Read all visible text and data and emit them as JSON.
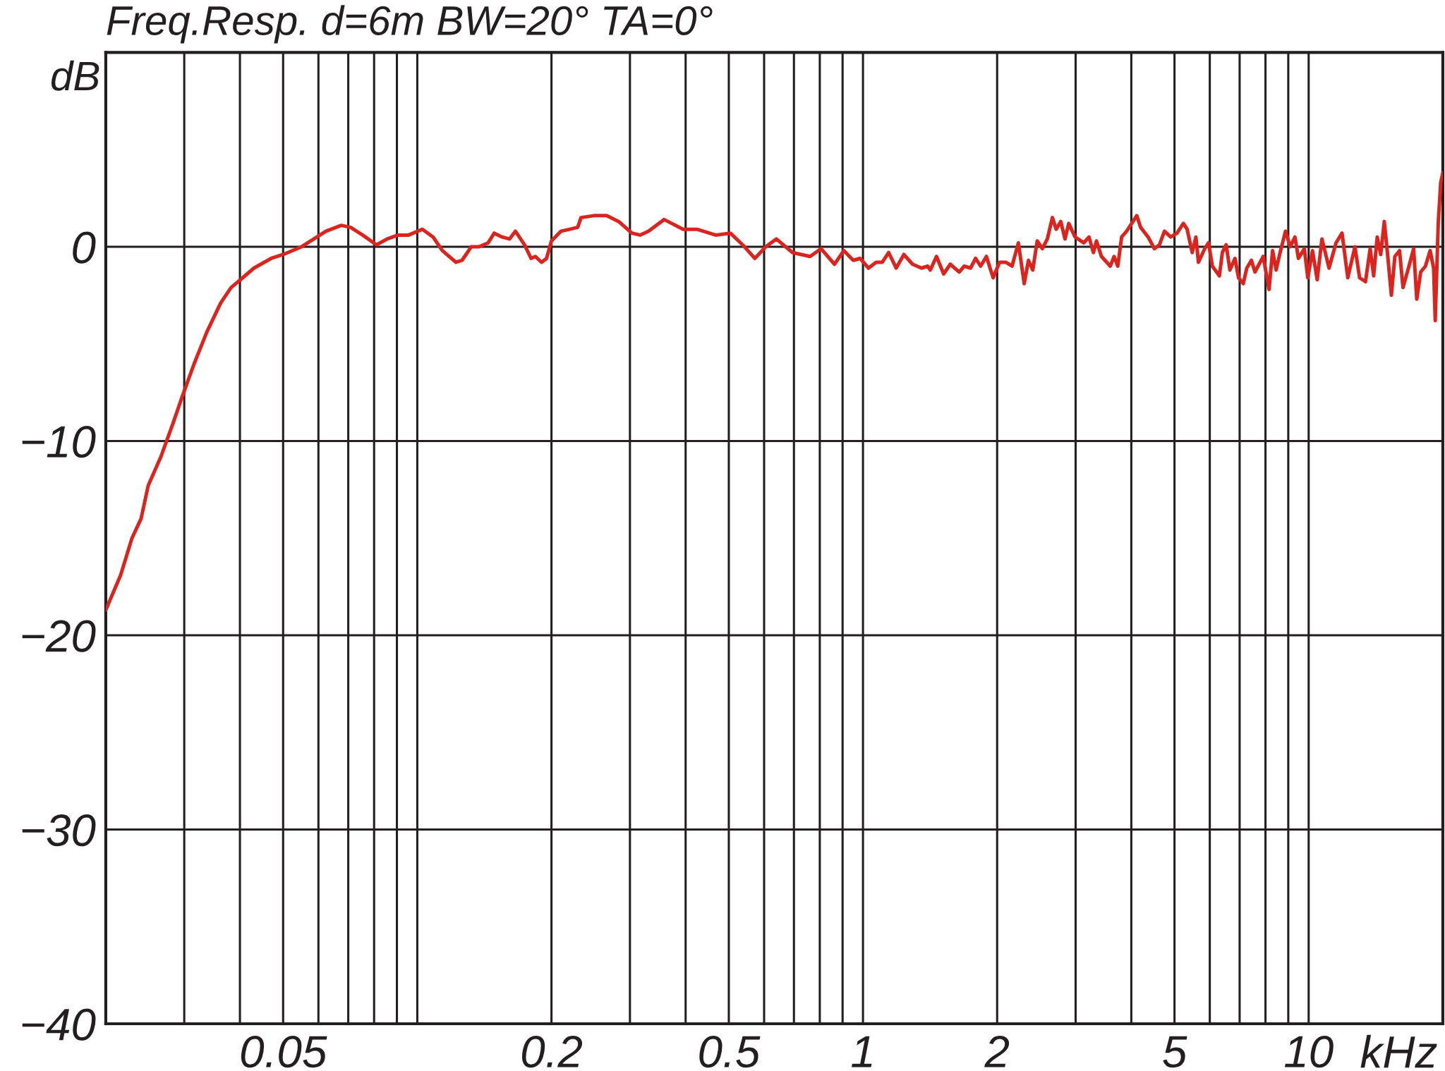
{
  "chart_data": {
    "type": "line",
    "title": "Freq.Resp. d=6m BW=20° TA=0°",
    "xlabel": "kHz",
    "ylabel": "dB",
    "log": "x",
    "grid": true,
    "xlim": [
      0.02,
      20
    ],
    "xticks": [
      {
        "value": 0.03,
        "label": null
      },
      {
        "value": 0.04,
        "label": null
      },
      0.05,
      {
        "value": 0.06,
        "label": null
      },
      {
        "value": 0.07,
        "label": null
      },
      {
        "value": 0.08,
        "label": null
      },
      {
        "value": 0.09,
        "label": null
      },
      {
        "value": 0.1,
        "label": null
      },
      0.2,
      {
        "value": 0.3,
        "label": null
      },
      {
        "value": 0.4,
        "label": null
      },
      0.5,
      {
        "value": 0.6,
        "label": null
      },
      {
        "value": 0.7,
        "label": null
      },
      {
        "value": 0.8,
        "label": null
      },
      {
        "value": 0.9,
        "label": null
      },
      1,
      2,
      {
        "value": 3,
        "label": null
      },
      {
        "value": 4,
        "label": null
      },
      5,
      {
        "value": 6,
        "label": null
      },
      {
        "value": 7,
        "label": null
      },
      {
        "value": 8,
        "label": null
      },
      {
        "value": 9,
        "label": null
      },
      10
    ],
    "ylim": [
      -40,
      10
    ],
    "yticks": [
      -40,
      -30,
      -20,
      -10,
      0
    ],
    "x": [
      0.02,
      0.0216,
      0.0229,
      0.024,
      0.0249,
      0.0266,
      0.0283,
      0.0297,
      0.0316,
      0.0337,
      0.0362,
      0.0382,
      0.0401,
      0.043,
      0.047,
      0.05,
      0.055,
      0.0586,
      0.0624,
      0.0675,
      0.0708,
      0.0754,
      0.081,
      0.0856,
      0.0905,
      0.0956,
      0.1027,
      0.1085,
      0.1138,
      0.1221,
      0.126,
      0.1322,
      0.1375,
      0.1442,
      0.1488,
      0.155,
      0.161,
      0.166,
      0.174,
      0.18,
      0.184,
      0.19,
      0.195,
      0.2,
      0.21,
      0.22,
      0.229,
      0.233,
      0.249,
      0.266,
      0.283,
      0.303,
      0.316,
      0.33,
      0.358,
      0.395,
      0.424,
      0.467,
      0.504,
      0.537,
      0.572,
      0.605,
      0.639,
      0.695,
      0.761,
      0.805,
      0.863,
      0.906,
      0.951,
      0.985,
      1.029,
      1.07,
      1.105,
      1.142,
      1.187,
      1.235,
      1.292,
      1.353,
      1.397,
      1.416,
      1.462,
      1.517,
      1.57,
      1.644,
      1.687,
      1.743,
      1.789,
      1.836,
      1.892,
      1.959,
      2.025,
      2.091,
      2.16,
      2.232,
      2.3,
      2.351,
      2.404,
      2.46,
      2.526,
      2.592,
      2.661,
      2.713,
      2.778,
      2.84,
      2.895,
      2.991,
      3.13,
      3.214,
      3.289,
      3.341,
      3.428,
      3.588,
      3.659,
      3.73,
      3.805,
      3.904,
      4.035,
      4.114,
      4.196,
      4.363,
      4.507,
      4.626,
      4.747,
      4.903,
      5.066,
      5.234,
      5.337,
      5.479,
      5.585,
      5.658,
      5.845,
      5.961,
      6.08,
      6.305,
      6.402,
      6.529,
      6.658,
      6.833,
      6.96,
      7.132,
      7.263,
      7.439,
      7.576,
      7.907,
      8.149,
      8.299,
      8.452,
      8.607,
      8.873,
      9.092,
      9.316,
      9.485,
      9.777,
      9.956,
      10.2,
      10.45,
      10.71,
      11.11,
      11.52,
      11.88,
      12.24,
      12.7,
      13.01,
      13.41,
      13.74,
      13.99,
      14.25,
      14.51,
      14.78,
      15.05,
      15.33,
      15.61,
      15.99,
      16.28,
      16.79,
      17.2,
      17.48,
      17.84,
      18.28,
      18.73,
      19.07,
      19.23,
      19.53,
      19.78,
      20
    ],
    "series": [
      {
        "color": "#dc241f",
        "values": [
          -18.7,
          -16.9,
          -15.0,
          -14.0,
          -12.3,
          -10.8,
          -9.1,
          -7.7,
          -6.0,
          -4.4,
          -2.9,
          -2.1,
          -1.7,
          -1.1,
          -0.6,
          -0.4,
          0.0,
          0.4,
          0.8,
          1.1,
          1.0,
          0.6,
          0.1,
          0.4,
          0.6,
          0.6,
          0.9,
          0.5,
          -0.2,
          -0.8,
          -0.7,
          0.0,
          0.0,
          0.2,
          0.7,
          0.5,
          0.4,
          0.8,
          0.1,
          -0.6,
          -0.5,
          -0.8,
          -0.6,
          0.3,
          0.8,
          0.9,
          1.0,
          1.5,
          1.6,
          1.6,
          1.3,
          0.7,
          0.6,
          0.8,
          1.4,
          0.9,
          0.9,
          0.6,
          0.7,
          0.1,
          -0.6,
          0.0,
          0.4,
          -0.3,
          -0.5,
          -0.1,
          -0.9,
          -0.2,
          -0.7,
          -0.6,
          -1.1,
          -0.8,
          -0.8,
          -0.3,
          -1.1,
          -0.4,
          -0.9,
          -1.1,
          -1.0,
          -1.2,
          -0.5,
          -1.4,
          -0.9,
          -1.3,
          -1.0,
          -1.1,
          -0.6,
          -1.0,
          -0.5,
          -1.6,
          -0.8,
          -0.8,
          -1.0,
          0.2,
          -1.9,
          -0.7,
          -1.2,
          0.3,
          -0.1,
          0.4,
          1.5,
          0.9,
          1.3,
          0.4,
          1.2,
          0.5,
          0.2,
          0.5,
          -0.3,
          0.3,
          -0.5,
          -1.0,
          -0.5,
          -1.0,
          0.5,
          0.8,
          1.3,
          1.6,
          1.0,
          0.5,
          -0.1,
          0.1,
          0.8,
          0.5,
          0.7,
          1.2,
          0.9,
          -0.3,
          0.5,
          -0.8,
          -0.1,
          0.2,
          -1.0,
          -1.5,
          -0.3,
          0.1,
          -1.2,
          -0.6,
          -1.6,
          -1.9,
          -1.1,
          -0.7,
          -1.3,
          -0.5,
          -2.2,
          -0.2,
          -1.2,
          -0.4,
          0.8,
          0.0,
          0.5,
          -0.6,
          -0.1,
          -1.6,
          -0.2,
          -1.7,
          0.4,
          -1.1,
          0.2,
          0.7,
          -1.6,
          0.0,
          -1.6,
          -1.8,
          -0.1,
          -1.5,
          0.5,
          -0.4,
          1.3,
          -0.5,
          -2.5,
          -0.5,
          -0.2,
          -2.1,
          -1.0,
          -0.1,
          -2.7,
          -1.3,
          -1.0,
          -0.2,
          -1.1,
          -3.8,
          1.2,
          3.3,
          3.8
        ]
      }
    ]
  }
}
